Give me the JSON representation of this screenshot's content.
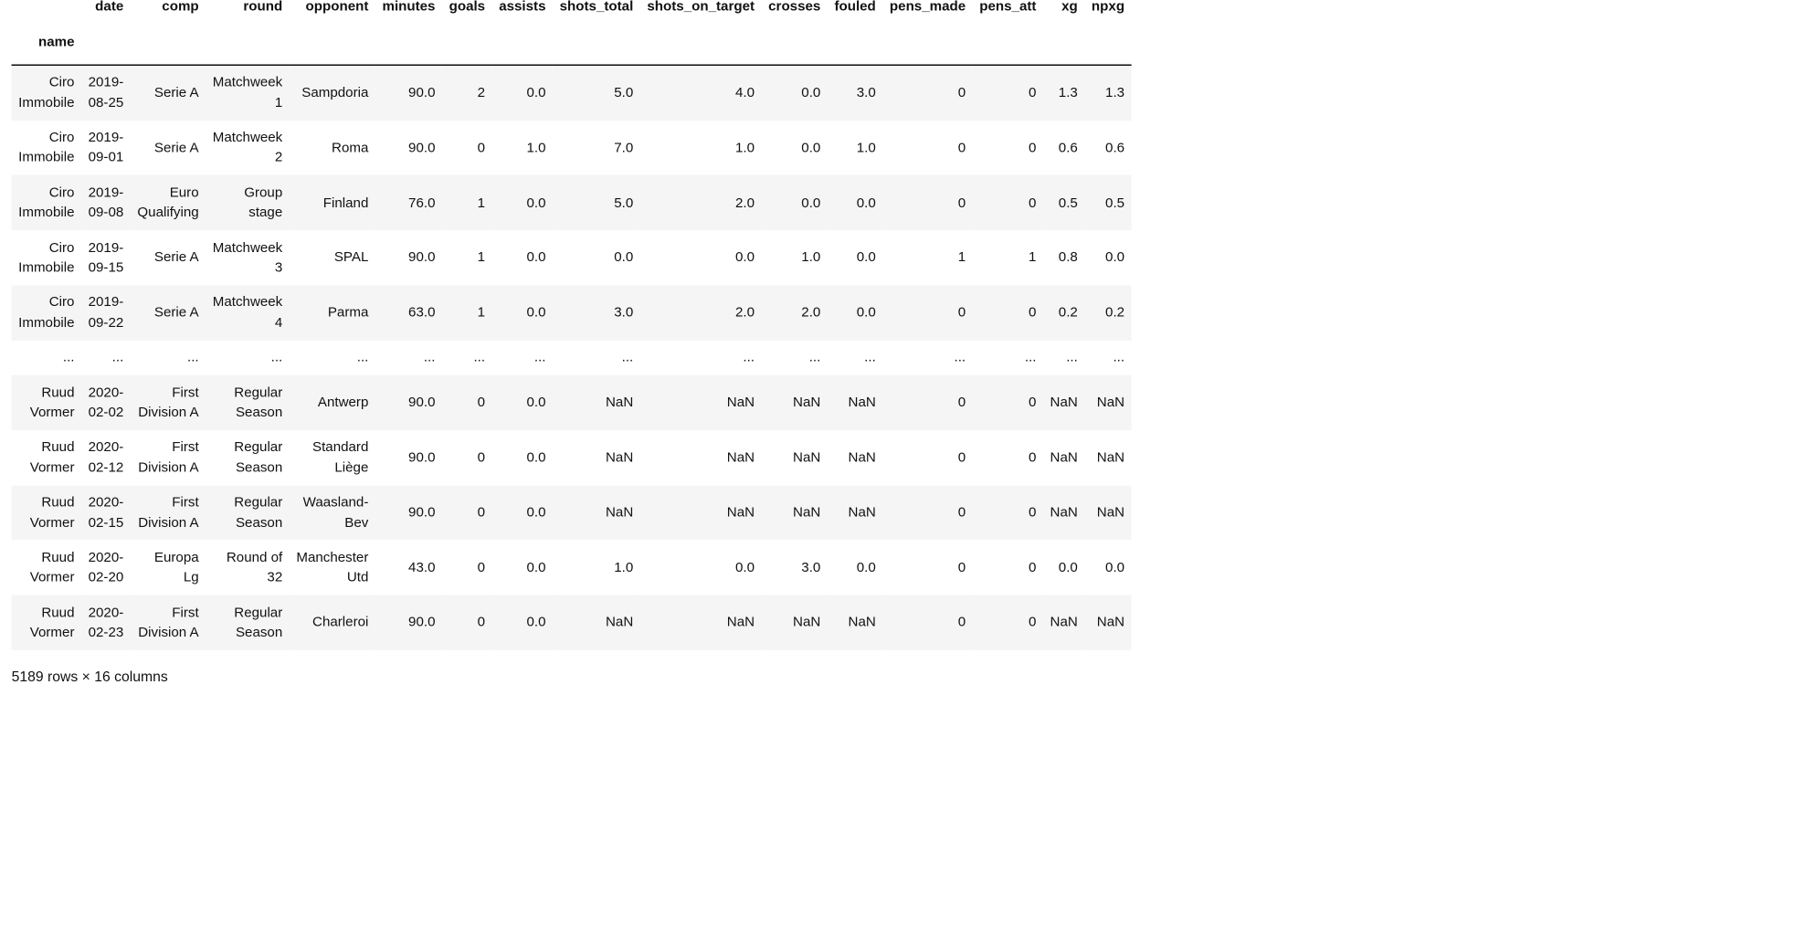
{
  "table": {
    "columns": [
      "date",
      "comp",
      "round",
      "opponent",
      "minutes",
      "goals",
      "assists",
      "shots_total",
      "shots_on_target",
      "crosses",
      "fouled",
      "pens_made",
      "pens_att",
      "xg",
      "npxg"
    ],
    "index_name": "name",
    "rows": [
      [
        "Ciro Immobile",
        "2019-08-25",
        "Serie A",
        "Matchweek 1",
        "Sampdoria",
        "90.0",
        "2",
        "0.0",
        "5.0",
        "4.0",
        "0.0",
        "3.0",
        "0",
        "0",
        "1.3",
        "1.3"
      ],
      [
        "Ciro Immobile",
        "2019-09-01",
        "Serie A",
        "Matchweek 2",
        "Roma",
        "90.0",
        "0",
        "1.0",
        "7.0",
        "1.0",
        "0.0",
        "1.0",
        "0",
        "0",
        "0.6",
        "0.6"
      ],
      [
        "Ciro Immobile",
        "2019-09-08",
        "Euro Qualifying",
        "Group stage",
        "Finland",
        "76.0",
        "1",
        "0.0",
        "5.0",
        "2.0",
        "0.0",
        "0.0",
        "0",
        "0",
        "0.5",
        "0.5"
      ],
      [
        "Ciro Immobile",
        "2019-09-15",
        "Serie A",
        "Matchweek 3",
        "SPAL",
        "90.0",
        "1",
        "0.0",
        "0.0",
        "0.0",
        "1.0",
        "0.0",
        "1",
        "1",
        "0.8",
        "0.0"
      ],
      [
        "Ciro Immobile",
        "2019-09-22",
        "Serie A",
        "Matchweek 4",
        "Parma",
        "63.0",
        "1",
        "0.0",
        "3.0",
        "2.0",
        "2.0",
        "0.0",
        "0",
        "0",
        "0.2",
        "0.2"
      ],
      [
        "...",
        "...",
        "...",
        "...",
        "...",
        "...",
        "...",
        "...",
        "...",
        "...",
        "...",
        "...",
        "...",
        "...",
        "...",
        "..."
      ],
      [
        "Ruud Vormer",
        "2020-02-02",
        "First Division A",
        "Regular Season",
        "Antwerp",
        "90.0",
        "0",
        "0.0",
        "NaN",
        "NaN",
        "NaN",
        "NaN",
        "0",
        "0",
        "NaN",
        "NaN"
      ],
      [
        "Ruud Vormer",
        "2020-02-12",
        "First Division A",
        "Regular Season",
        "Standard Liège",
        "90.0",
        "0",
        "0.0",
        "NaN",
        "NaN",
        "NaN",
        "NaN",
        "0",
        "0",
        "NaN",
        "NaN"
      ],
      [
        "Ruud Vormer",
        "2020-02-15",
        "First Division A",
        "Regular Season",
        "Waasland-Bev",
        "90.0",
        "0",
        "0.0",
        "NaN",
        "NaN",
        "NaN",
        "NaN",
        "0",
        "0",
        "NaN",
        "NaN"
      ],
      [
        "Ruud Vormer",
        "2020-02-20",
        "Europa Lg",
        "Round of 32",
        "Manchester Utd",
        "43.0",
        "0",
        "0.0",
        "1.0",
        "0.0",
        "3.0",
        "0.0",
        "0",
        "0",
        "0.0",
        "0.0"
      ],
      [
        "Ruud Vormer",
        "2020-02-23",
        "First Division A",
        "Regular Season",
        "Charleroi",
        "90.0",
        "0",
        "0.0",
        "NaN",
        "NaN",
        "NaN",
        "NaN",
        "0",
        "0",
        "NaN",
        "NaN"
      ]
    ]
  },
  "footer": {
    "shape": "5189 rows × 16 columns"
  },
  "colors": {
    "row_stripe": "#f5f5f5",
    "row_plain": "#ffffff",
    "header_rule": "#000000",
    "text": "#111111"
  }
}
